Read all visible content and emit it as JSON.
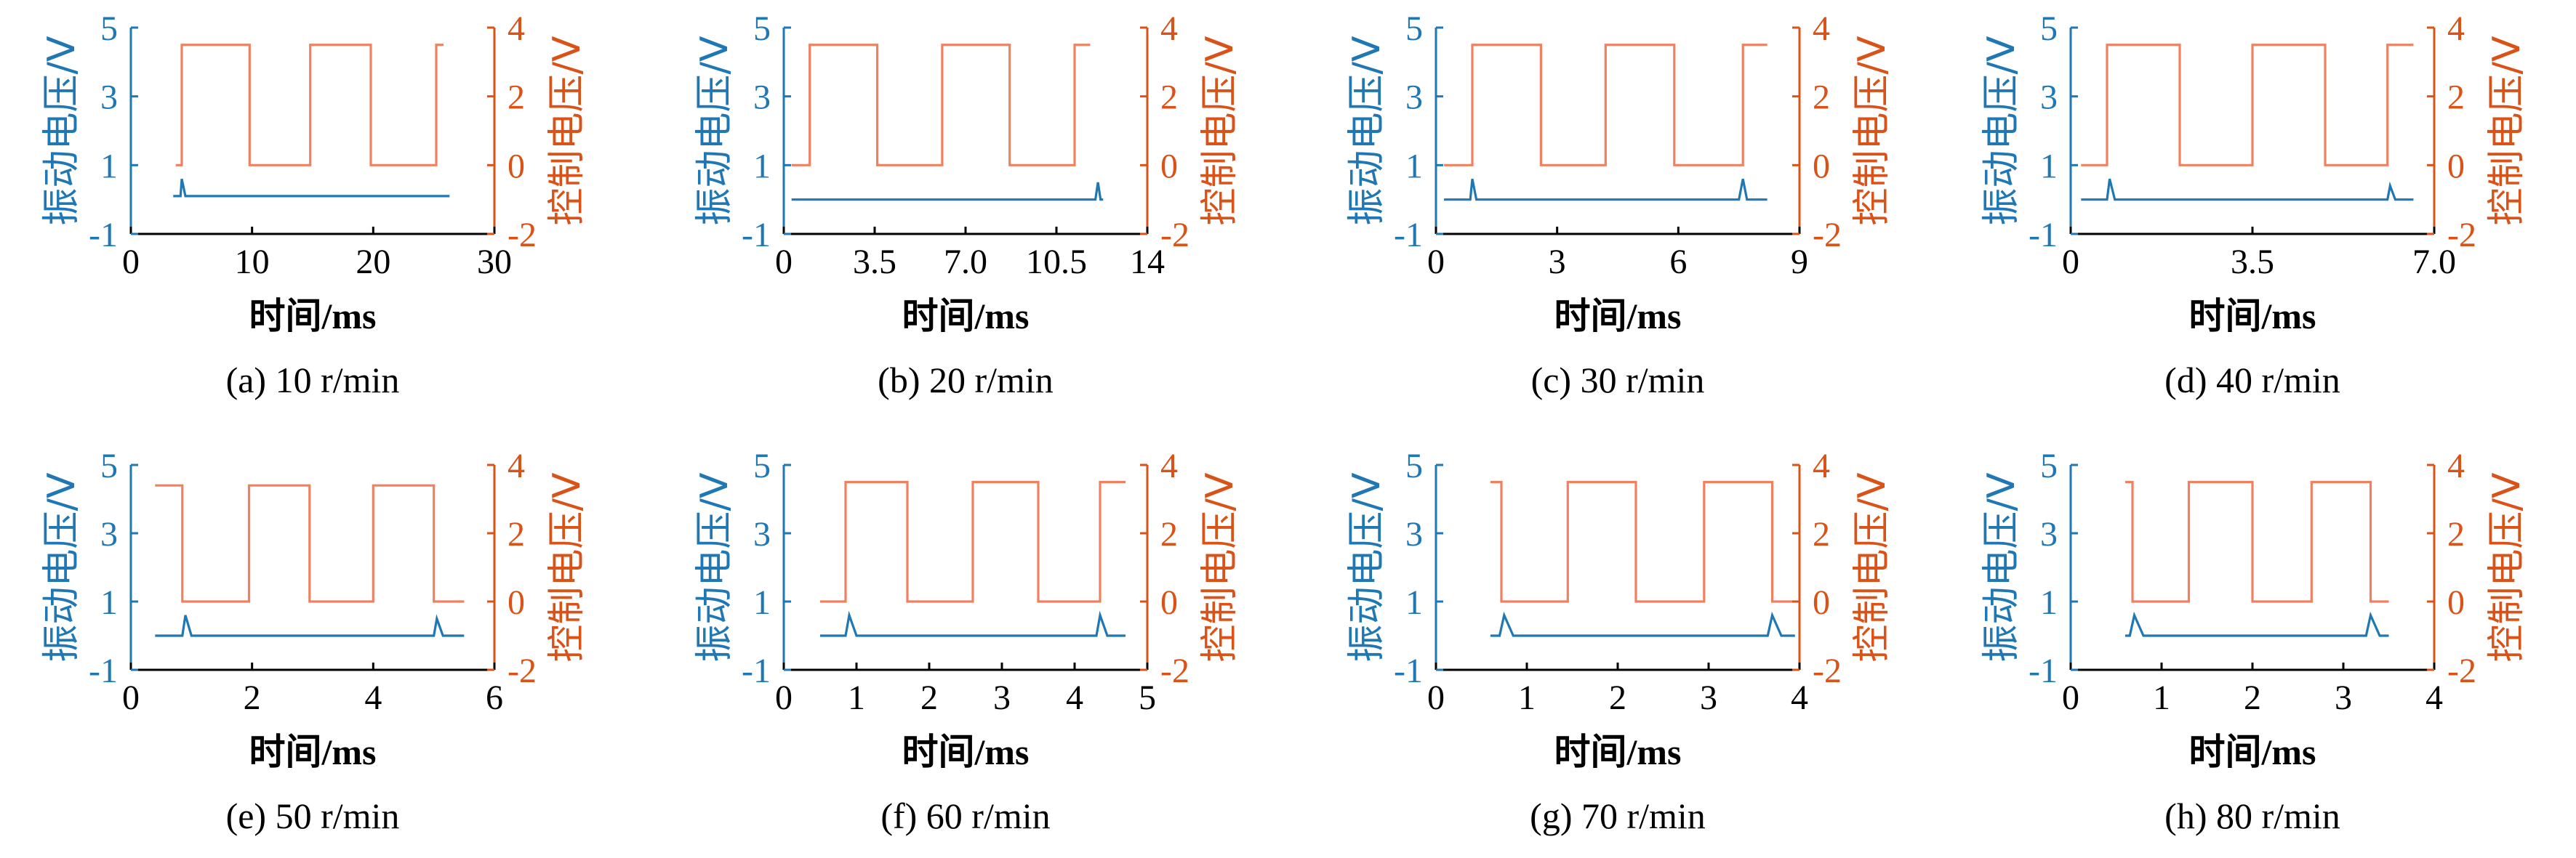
{
  "colors": {
    "vibration": "#1f77b4",
    "control": "#d95319",
    "control_line": "#ef8060",
    "axis": "#000000",
    "background": "#ffffff"
  },
  "chart_data": [
    {
      "type": "line",
      "caption": "(a)  10 r/min",
      "xlabel": "时间/ms",
      "ylabel_left": "振动电压/V",
      "ylabel_right": "控制电压/V",
      "xlim": [
        0,
        30
      ],
      "xticks": [
        0,
        10,
        20,
        30
      ],
      "xtick_labels": [
        "0",
        "10",
        "20",
        "30"
      ],
      "ylim_left": [
        -1,
        5
      ],
      "yticks_left": [
        -1,
        1,
        3,
        5
      ],
      "ylim_right": [
        -2,
        4
      ],
      "yticks_right": [
        -2,
        0,
        2,
        4
      ],
      "series": [
        {
          "name": "控制电压",
          "axis": "right",
          "x": [
            3.7,
            4.2,
            4.2,
            9.8,
            9.8,
            14.8,
            14.8,
            19.8,
            19.8,
            25.2,
            25.2,
            25.8
          ],
          "y": [
            0,
            0,
            3.5,
            3.5,
            0,
            0,
            3.5,
            3.5,
            0,
            0,
            3.5,
            3.5
          ]
        },
        {
          "name": "振动电压",
          "axis": "left",
          "x": [
            3.5,
            4.1,
            4.2,
            4.5,
            26.0,
            26.3
          ],
          "y": [
            0.1,
            0.1,
            0.6,
            0.1,
            0.1,
            0.1
          ]
        }
      ]
    },
    {
      "type": "line",
      "caption": "(b)  20 r/min",
      "xlabel": "时间/ms",
      "ylabel_left": "振动电压/V",
      "ylabel_right": "控制电压/V",
      "xlim": [
        0,
        14
      ],
      "xticks": [
        0,
        3.5,
        7,
        10.5,
        14
      ],
      "xtick_labels": [
        "0",
        "3.5",
        "7.0",
        "10.5",
        "14"
      ],
      "ylim_left": [
        -1,
        5
      ],
      "yticks_left": [
        -1,
        1,
        3,
        5
      ],
      "ylim_right": [
        -2,
        4
      ],
      "yticks_right": [
        -2,
        0,
        2,
        4
      ],
      "series": [
        {
          "name": "控制电压",
          "axis": "right",
          "x": [
            0.3,
            1.0,
            1.0,
            3.6,
            3.6,
            6.1,
            6.1,
            8.7,
            8.7,
            11.2,
            11.2,
            11.8
          ],
          "y": [
            0,
            0,
            3.5,
            3.5,
            0,
            0,
            3.5,
            3.5,
            0,
            0,
            3.5,
            3.5
          ]
        },
        {
          "name": "振动电压",
          "axis": "left",
          "x": [
            0.3,
            12.0,
            12.1,
            12.2,
            12.3
          ],
          "y": [
            0.0,
            0.0,
            0.5,
            0.0,
            0.0
          ]
        }
      ]
    },
    {
      "type": "line",
      "caption": "(c)  30 r/min",
      "xlabel": "时间/ms",
      "ylabel_left": "振动电压/V",
      "ylabel_right": "控制电压/V",
      "xlim": [
        0,
        9
      ],
      "xticks": [
        0,
        3,
        6,
        9
      ],
      "xtick_labels": [
        "0",
        "3",
        "6",
        "9"
      ],
      "ylim_left": [
        -1,
        5
      ],
      "yticks_left": [
        -1,
        1,
        3,
        5
      ],
      "ylim_right": [
        -2,
        4
      ],
      "yticks_right": [
        -2,
        0,
        2,
        4
      ],
      "series": [
        {
          "name": "控制电压",
          "axis": "right",
          "x": [
            0.2,
            0.9,
            0.9,
            2.6,
            2.6,
            4.2,
            4.2,
            5.9,
            5.9,
            7.6,
            7.6,
            8.2
          ],
          "y": [
            0,
            0,
            3.5,
            3.5,
            0,
            0,
            3.5,
            3.5,
            0,
            0,
            3.5,
            3.5
          ]
        },
        {
          "name": "振动电压",
          "axis": "left",
          "x": [
            0.2,
            0.85,
            0.9,
            1.0,
            7.5,
            7.6,
            7.7,
            8.2
          ],
          "y": [
            0.0,
            0.0,
            0.6,
            0.0,
            0.0,
            0.6,
            0.0,
            0.0
          ]
        }
      ]
    },
    {
      "type": "line",
      "caption": "(d)  40 r/min",
      "xlabel": "时间/ms",
      "ylabel_left": "振动电压/V",
      "ylabel_right": "控制电压/V",
      "xlim": [
        0,
        7
      ],
      "xticks": [
        0,
        3.5,
        7
      ],
      "xtick_labels": [
        "0",
        "3.5",
        "7.0"
      ],
      "ylim_left": [
        -1,
        5
      ],
      "yticks_left": [
        -1,
        1,
        3,
        5
      ],
      "ylim_right": [
        -2,
        4
      ],
      "yticks_right": [
        -2,
        0,
        2,
        4
      ],
      "series": [
        {
          "name": "控制电压",
          "axis": "right",
          "x": [
            0.2,
            0.7,
            0.7,
            2.1,
            2.1,
            3.5,
            3.5,
            4.9,
            4.9,
            6.1,
            6.1,
            6.6
          ],
          "y": [
            0,
            0,
            3.5,
            3.5,
            0,
            0,
            3.5,
            3.5,
            0,
            0,
            3.5,
            3.5
          ]
        },
        {
          "name": "振动电压",
          "axis": "left",
          "x": [
            0.2,
            0.7,
            0.75,
            0.85,
            6.1,
            6.15,
            6.25,
            6.6
          ],
          "y": [
            0.0,
            0.0,
            0.6,
            0.0,
            0.0,
            0.4,
            0.0,
            0.0
          ]
        }
      ]
    },
    {
      "type": "line",
      "caption": "(e)  50 r/min",
      "xlabel": "时间/ms",
      "ylabel_left": "振动电压/V",
      "ylabel_right": "控制电压/V",
      "xlim": [
        0,
        6
      ],
      "xticks": [
        0,
        2,
        4,
        6
      ],
      "xtick_labels": [
        "0",
        "2",
        "4",
        "6"
      ],
      "ylim_left": [
        -1,
        5
      ],
      "yticks_left": [
        -1,
        1,
        3,
        5
      ],
      "ylim_right": [
        -2,
        4
      ],
      "yticks_right": [
        -2,
        0,
        2,
        4
      ],
      "series": [
        {
          "name": "控制电压",
          "axis": "right",
          "x": [
            0.4,
            0.85,
            0.85,
            1.95,
            1.95,
            2.95,
            2.95,
            4.0,
            4.0,
            5.0,
            5.0,
            5.5
          ],
          "y": [
            3.4,
            3.4,
            0,
            0,
            3.4,
            3.4,
            0,
            0,
            3.4,
            3.4,
            0,
            0
          ]
        },
        {
          "name": "振动电压",
          "axis": "left",
          "x": [
            0.4,
            0.85,
            0.9,
            1.0,
            5.0,
            5.05,
            5.15,
            5.5
          ],
          "y": [
            0.0,
            0.0,
            0.6,
            0.0,
            0.0,
            0.5,
            0.0,
            0.0
          ]
        }
      ]
    },
    {
      "type": "line",
      "caption": "(f)  60 r/min",
      "xlabel": "时间/ms",
      "ylabel_left": "振动电压/V",
      "ylabel_right": "控制电压/V",
      "xlim": [
        0,
        5
      ],
      "xticks": [
        0,
        1,
        2,
        3,
        4,
        5
      ],
      "xtick_labels": [
        "0",
        "1",
        "2",
        "3",
        "4",
        "5"
      ],
      "ylim_left": [
        -1,
        5
      ],
      "yticks_left": [
        -1,
        1,
        3,
        5
      ],
      "ylim_right": [
        -2,
        4
      ],
      "yticks_right": [
        -2,
        0,
        2,
        4
      ],
      "series": [
        {
          "name": "控制电压",
          "axis": "right",
          "x": [
            0.5,
            0.85,
            0.85,
            1.7,
            1.7,
            2.6,
            2.6,
            3.5,
            3.5,
            4.35,
            4.35,
            4.7
          ],
          "y": [
            0,
            0,
            3.5,
            3.5,
            0,
            0,
            3.5,
            3.5,
            0,
            0,
            3.5,
            3.5
          ]
        },
        {
          "name": "振动电压",
          "axis": "left",
          "x": [
            0.5,
            0.85,
            0.9,
            1.0,
            4.3,
            4.35,
            4.45,
            4.7
          ],
          "y": [
            0.0,
            0.0,
            0.6,
            0.0,
            0.0,
            0.6,
            0.0,
            0.0
          ]
        }
      ]
    },
    {
      "type": "line",
      "caption": "(g)  70 r/min",
      "xlabel": "时间/ms",
      "ylabel_left": "振动电压/V",
      "ylabel_right": "控制电压/V",
      "xlim": [
        0,
        4
      ],
      "xticks": [
        0,
        1,
        2,
        3,
        4
      ],
      "xtick_labels": [
        "0",
        "1",
        "2",
        "3",
        "4"
      ],
      "ylim_left": [
        -1,
        5
      ],
      "yticks_left": [
        -1,
        1,
        3,
        5
      ],
      "ylim_right": [
        -2,
        4
      ],
      "yticks_right": [
        -2,
        0,
        2,
        4
      ],
      "series": [
        {
          "name": "控制电压",
          "axis": "right",
          "x": [
            0.6,
            0.72,
            0.72,
            1.45,
            1.45,
            2.2,
            2.2,
            2.95,
            2.95,
            3.7,
            3.7,
            3.95
          ],
          "y": [
            3.5,
            3.5,
            0,
            0,
            3.5,
            3.5,
            0,
            0,
            3.5,
            3.5,
            0,
            0
          ]
        },
        {
          "name": "振动电压",
          "axis": "left",
          "x": [
            0.6,
            0.7,
            0.75,
            0.85,
            3.65,
            3.7,
            3.8,
            3.95
          ],
          "y": [
            0.0,
            0.0,
            0.6,
            0.0,
            0.0,
            0.6,
            0.0,
            0.0
          ]
        }
      ]
    },
    {
      "type": "line",
      "caption": "(h)  80 r/min",
      "xlabel": "时间/ms",
      "ylabel_left": "振动电压/V",
      "ylabel_right": "控制电压/V",
      "xlim": [
        0,
        4
      ],
      "xticks": [
        0,
        1,
        2,
        3,
        4
      ],
      "xtick_labels": [
        "0",
        "1",
        "2",
        "3",
        "4"
      ],
      "ylim_left": [
        -1,
        5
      ],
      "yticks_left": [
        -1,
        1,
        3,
        5
      ],
      "ylim_right": [
        -2,
        4
      ],
      "yticks_right": [
        -2,
        0,
        2,
        4
      ],
      "series": [
        {
          "name": "控制电压",
          "axis": "right",
          "x": [
            0.6,
            0.68,
            0.68,
            1.3,
            1.3,
            2.0,
            2.0,
            2.65,
            2.65,
            3.3,
            3.3,
            3.5
          ],
          "y": [
            3.5,
            3.5,
            0,
            0,
            3.5,
            3.5,
            0,
            0,
            3.5,
            3.5,
            0,
            0
          ]
        },
        {
          "name": "振动电压",
          "axis": "left",
          "x": [
            0.6,
            0.65,
            0.7,
            0.8,
            3.25,
            3.3,
            3.4,
            3.5
          ],
          "y": [
            0.0,
            0.0,
            0.6,
            0.0,
            0.0,
            0.6,
            0.0,
            0.0
          ]
        }
      ]
    }
  ]
}
